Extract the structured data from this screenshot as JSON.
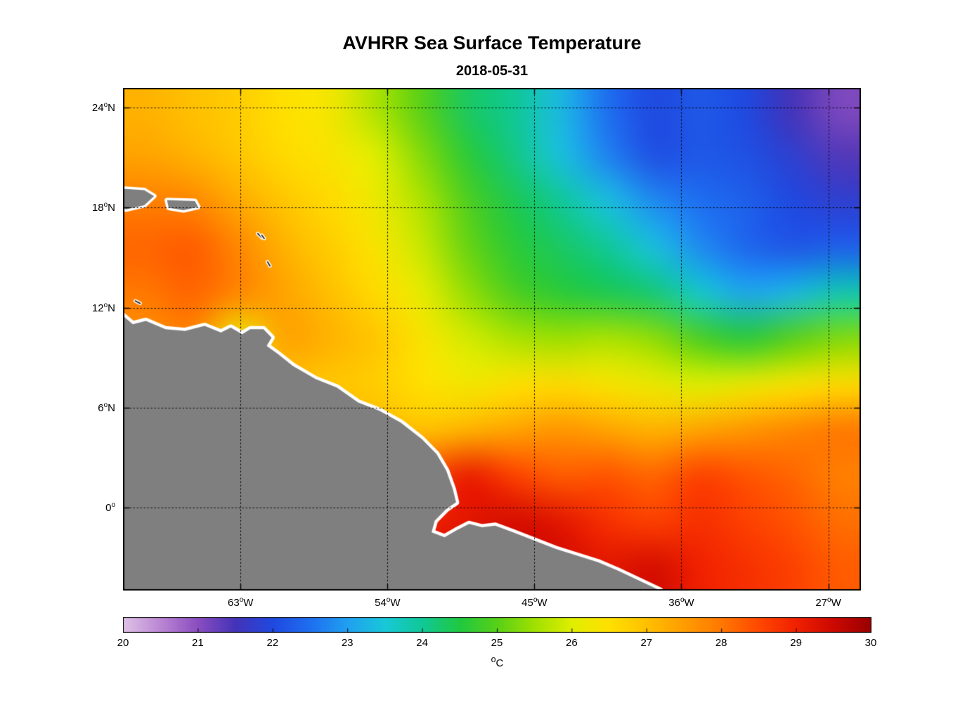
{
  "title": "AVHRR Sea Surface Temperature",
  "subtitle": "2018-05-31",
  "chart_data": {
    "type": "heatmap",
    "title": "AVHRR Sea Surface Temperature",
    "subtitle": "2018-05-31",
    "axes": {
      "lon_range": [
        -70.2,
        -25.0
      ],
      "lat_range": [
        -5.0,
        25.2
      ],
      "lon_ticks": [
        {
          "value": -63,
          "label": "63°W"
        },
        {
          "value": -54,
          "label": "54°W"
        },
        {
          "value": -45,
          "label": "45°W"
        },
        {
          "value": -36,
          "label": "36°W"
        },
        {
          "value": -27,
          "label": "27°W"
        }
      ],
      "lat_ticks": [
        {
          "value": 24,
          "label": "24°N"
        },
        {
          "value": 18,
          "label": "18°N"
        },
        {
          "value": 12,
          "label": "12°N"
        },
        {
          "value": 6,
          "label": "6°N"
        },
        {
          "value": 0,
          "label": "0°"
        }
      ],
      "grid_style": "dotted"
    },
    "colorbar": {
      "label": "°C",
      "min": 20,
      "max": 30,
      "ticks": [
        20,
        21,
        22,
        23,
        24,
        25,
        26,
        27,
        28,
        29,
        30
      ],
      "orientation": "horizontal"
    },
    "colormap": [
      {
        "v": 20.0,
        "c": "#DFC2E6"
      },
      {
        "v": 20.5,
        "c": "#BB86D4"
      },
      {
        "v": 21.0,
        "c": "#8A4DBF"
      },
      {
        "v": 21.5,
        "c": "#4433B8"
      },
      {
        "v": 22.0,
        "c": "#1F49E0"
      },
      {
        "v": 22.5,
        "c": "#1E6FF0"
      },
      {
        "v": 23.0,
        "c": "#20A0F0"
      },
      {
        "v": 23.5,
        "c": "#18C8D8"
      },
      {
        "v": 24.0,
        "c": "#10C896"
      },
      {
        "v": 24.5,
        "c": "#20C840"
      },
      {
        "v": 25.0,
        "c": "#58D018"
      },
      {
        "v": 25.5,
        "c": "#A0E000"
      },
      {
        "v": 26.0,
        "c": "#E0EE00"
      },
      {
        "v": 26.5,
        "c": "#FFE000"
      },
      {
        "v": 27.0,
        "c": "#FFC000"
      },
      {
        "v": 27.5,
        "c": "#FF9C00"
      },
      {
        "v": 28.0,
        "c": "#FF7800"
      },
      {
        "v": 28.5,
        "c": "#FF4800"
      },
      {
        "v": 29.0,
        "c": "#F02000"
      },
      {
        "v": 29.5,
        "c": "#CC0800"
      },
      {
        "v": 30.0,
        "c": "#990000"
      }
    ],
    "sst_grid": {
      "units": "°C",
      "lon": [
        -70,
        -67,
        -64,
        -61,
        -58,
        -55,
        -52,
        -49,
        -46,
        -43,
        -40,
        -37,
        -34,
        -31,
        -28,
        -25
      ],
      "lat": [
        25,
        22,
        19,
        16,
        13,
        10,
        7,
        4,
        1,
        -2,
        -5
      ],
      "values_c": [
        [
          27.2,
          27.0,
          26.8,
          26.5,
          26.3,
          25.6,
          25.0,
          24.3,
          24.0,
          23.3,
          22.5,
          22.0,
          22.2,
          22.0,
          21.5,
          21.1
        ],
        [
          27.4,
          27.2,
          26.9,
          26.6,
          26.4,
          26.0,
          25.3,
          24.6,
          24.1,
          23.4,
          22.7,
          22.1,
          22.2,
          22.1,
          21.8,
          21.4
        ],
        [
          27.9,
          27.8,
          27.3,
          26.9,
          26.6,
          26.2,
          25.6,
          24.9,
          24.4,
          24.0,
          23.4,
          22.8,
          22.5,
          22.3,
          22.0,
          21.8
        ],
        [
          28.2,
          28.3,
          27.8,
          27.2,
          26.8,
          26.4,
          25.8,
          25.1,
          24.6,
          24.3,
          24.0,
          23.4,
          22.8,
          22.4,
          22.2,
          22.3
        ],
        [
          28.0,
          28.2,
          27.8,
          27.4,
          27.0,
          26.6,
          26.1,
          25.4,
          24.9,
          24.6,
          24.4,
          24.2,
          23.6,
          23.1,
          23.3,
          23.8
        ],
        [
          27.6,
          27.8,
          26.2,
          27.4,
          27.2,
          26.9,
          26.4,
          25.9,
          25.6,
          25.5,
          25.6,
          25.4,
          24.9,
          24.6,
          25.0,
          25.3
        ],
        [
          27.2,
          27.2,
          27.1,
          27.0,
          26.9,
          26.8,
          26.5,
          26.3,
          26.5,
          26.6,
          26.4,
          26.2,
          26.0,
          26.2,
          26.4,
          26.6
        ],
        [
          27.6,
          27.6,
          27.5,
          27.4,
          27.3,
          27.2,
          27.0,
          27.2,
          27.4,
          27.6,
          27.4,
          27.2,
          27.4,
          27.6,
          27.8,
          28.0
        ],
        [
          28.4,
          28.4,
          28.4,
          28.4,
          28.4,
          28.4,
          28.5,
          29.1,
          28.6,
          28.3,
          28.4,
          28.2,
          28.6,
          28.4,
          28.2,
          27.9
        ],
        [
          29.0,
          29.0,
          29.0,
          29.0,
          29.0,
          29.0,
          29.0,
          29.2,
          29.4,
          29.2,
          28.8,
          28.6,
          28.8,
          28.6,
          28.4,
          28.1
        ],
        [
          29.4,
          29.4,
          29.4,
          29.4,
          29.4,
          29.4,
          29.4,
          29.4,
          29.5,
          29.4,
          29.2,
          29.4,
          29.0,
          28.8,
          28.6,
          28.3
        ]
      ]
    },
    "land": {
      "fill": "#7F7F7F",
      "coast_halo": "#FFFFFF",
      "mainland": [
        [
          -72.5,
          11.6
        ],
        [
          -70.2,
          11.5
        ],
        [
          -69.6,
          11.0
        ],
        [
          -68.8,
          11.2
        ],
        [
          -67.6,
          10.7
        ],
        [
          -66.4,
          10.6
        ],
        [
          -65.2,
          10.9
        ],
        [
          -64.2,
          10.5
        ],
        [
          -63.6,
          10.8
        ],
        [
          -62.9,
          10.4
        ],
        [
          -62.4,
          10.7
        ],
        [
          -61.6,
          10.7
        ],
        [
          -61.1,
          10.2
        ],
        [
          -61.4,
          9.7
        ],
        [
          -60.7,
          9.2
        ],
        [
          -59.8,
          8.5
        ],
        [
          -58.4,
          7.7
        ],
        [
          -57.1,
          7.2
        ],
        [
          -55.8,
          6.3
        ],
        [
          -54.5,
          5.8
        ],
        [
          -53.2,
          5.1
        ],
        [
          -51.9,
          4.1
        ],
        [
          -51.0,
          3.2
        ],
        [
          -50.4,
          2.2
        ],
        [
          -50.0,
          1.1
        ],
        [
          -49.8,
          0.3
        ],
        [
          -50.4,
          -0.1
        ],
        [
          -51.1,
          -0.8
        ],
        [
          -51.3,
          -1.5
        ],
        [
          -50.5,
          -1.8
        ],
        [
          -49.8,
          -1.4
        ],
        [
          -49.0,
          -1.0
        ],
        [
          -48.2,
          -1.2
        ],
        [
          -47.4,
          -1.1
        ],
        [
          -46.3,
          -1.5
        ],
        [
          -45.0,
          -2.0
        ],
        [
          -43.7,
          -2.5
        ],
        [
          -42.4,
          -2.9
        ],
        [
          -41.1,
          -3.3
        ],
        [
          -39.9,
          -3.8
        ],
        [
          -38.6,
          -4.4
        ],
        [
          -37.3,
          -5.0
        ],
        [
          -37.0,
          -6.5
        ],
        [
          -72.5,
          -6.5
        ]
      ],
      "islands": [
        [
          [
            -71.0,
            19.2
          ],
          [
            -68.9,
            19.05
          ],
          [
            -68.3,
            18.7
          ],
          [
            -68.9,
            18.15
          ],
          [
            -70.0,
            17.9
          ],
          [
            -71.0,
            18.1
          ]
        ],
        [
          [
            -67.5,
            18.45
          ],
          [
            -65.8,
            18.4
          ],
          [
            -65.6,
            18.05
          ],
          [
            -66.5,
            17.85
          ],
          [
            -67.4,
            18.0
          ]
        ]
      ],
      "island_marks": [
        [
          [
            -61.95,
            16.45
          ],
          [
            -61.7,
            16.2
          ]
        ],
        [
          [
            -61.7,
            16.35
          ],
          [
            -61.55,
            16.15
          ]
        ],
        [
          [
            -61.35,
            14.75
          ],
          [
            -61.2,
            14.5
          ]
        ],
        [
          [
            -69.45,
            12.4
          ],
          [
            -69.15,
            12.25
          ]
        ]
      ]
    }
  }
}
